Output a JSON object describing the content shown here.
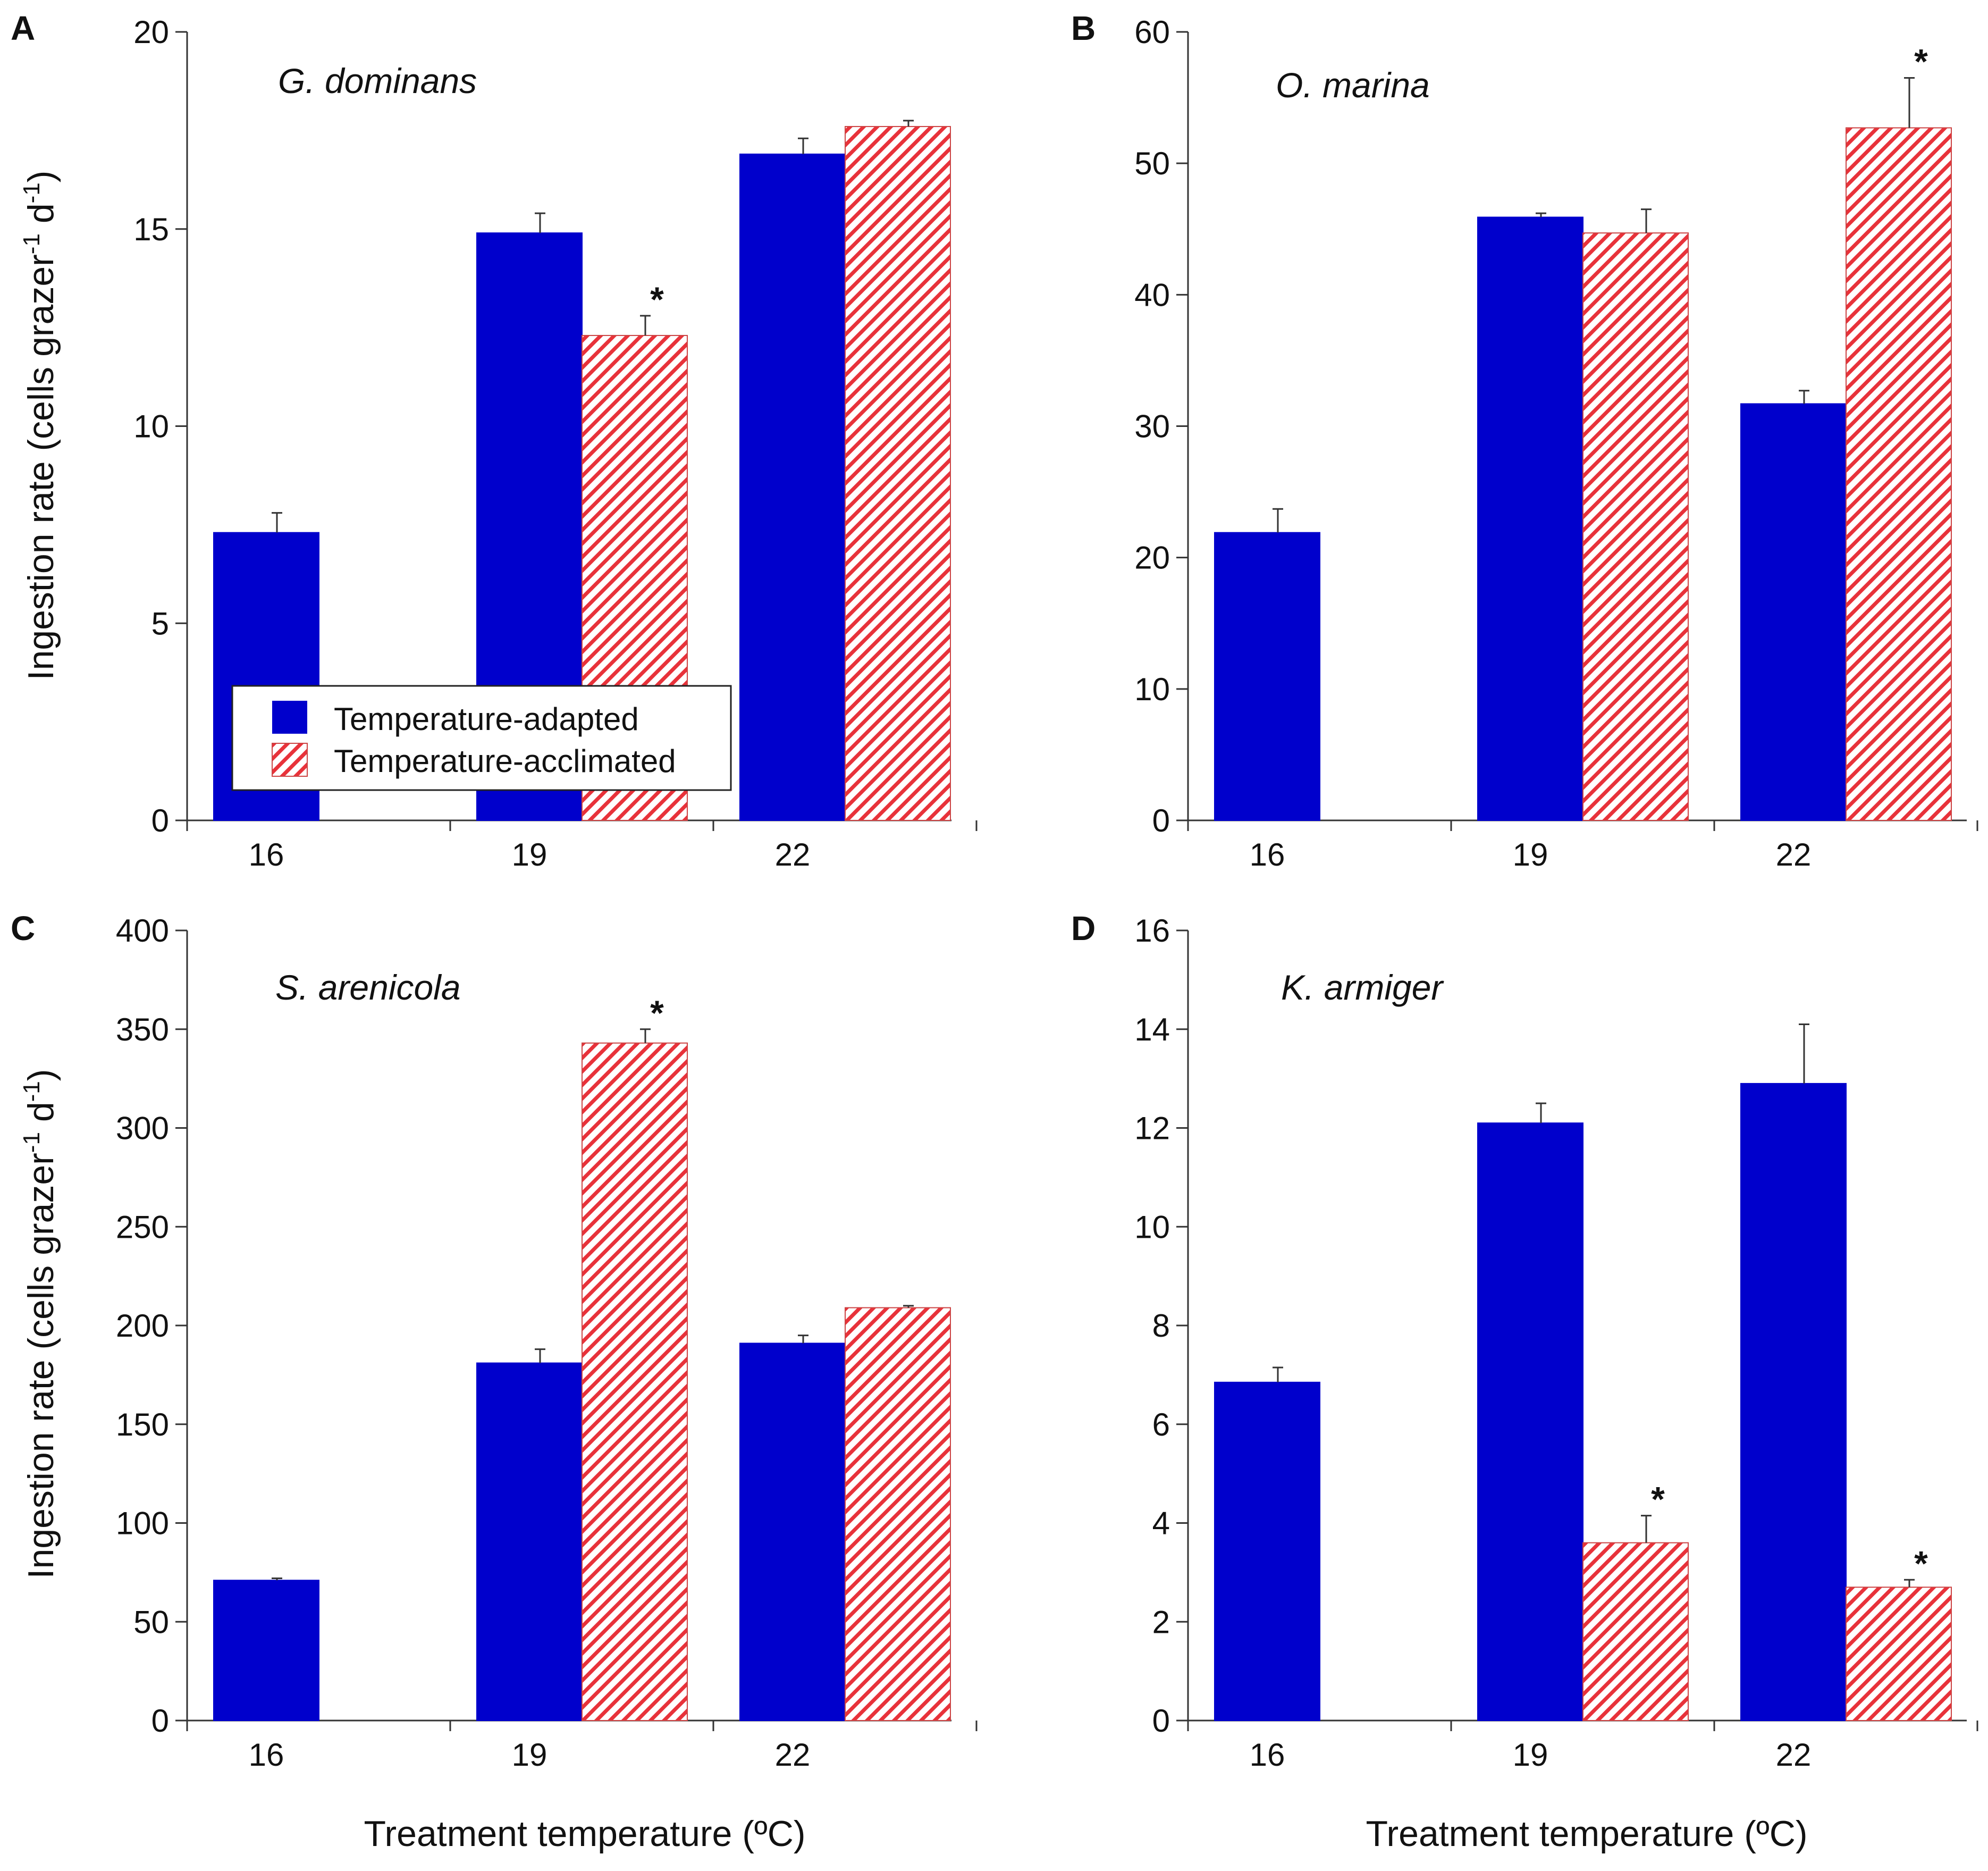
{
  "figure": {
    "colors": {
      "adapted": "#0000cc",
      "acclimated_stripe": "#e8323a",
      "acclimated_bg": "#ffffff",
      "axis": "#333333"
    },
    "xlabel": "Treatment temperature (ºC)",
    "ylabel": {
      "main": "Ingestion rate (cells grazer",
      "sup1": "-1",
      "mid": " d",
      "sup2": "-1",
      "end": ")"
    },
    "legend": {
      "adapted": "Temperature-adapted",
      "acclimated": "Temperature-acclimated"
    },
    "significance_marker": "*"
  },
  "chart_data": [
    {
      "type": "bar",
      "panel": "A",
      "title": "G. dominans",
      "categories": [
        "16",
        "19",
        "22"
      ],
      "ylim": [
        0,
        20
      ],
      "yticks": [
        0,
        5,
        10,
        15,
        20
      ],
      "series": [
        {
          "name": "Temperature-adapted",
          "values": [
            7.3,
            14.9,
            16.9
          ],
          "errors": [
            0.5,
            0.5,
            0.4
          ]
        },
        {
          "name": "Temperature-acclimated",
          "values": [
            null,
            12.3,
            17.6
          ],
          "errors": [
            null,
            0.5,
            0.15
          ]
        }
      ],
      "significant": [
        [
          false,
          false,
          false
        ],
        [
          false,
          true,
          false
        ]
      ],
      "has_legend": true
    },
    {
      "type": "bar",
      "panel": "B",
      "title": "O. marina",
      "categories": [
        "16",
        "19",
        "22"
      ],
      "ylim": [
        0,
        60
      ],
      "yticks": [
        0,
        10,
        20,
        30,
        40,
        50,
        60
      ],
      "series": [
        {
          "name": "Temperature-adapted",
          "values": [
            21.9,
            45.9,
            31.7
          ],
          "errors": [
            1.8,
            0.3,
            1.0
          ]
        },
        {
          "name": "Temperature-acclimated",
          "values": [
            null,
            44.7,
            52.7
          ],
          "errors": [
            null,
            1.8,
            3.8
          ]
        }
      ],
      "significant": [
        [
          false,
          false,
          false
        ],
        [
          false,
          false,
          true
        ]
      ],
      "has_legend": false
    },
    {
      "type": "bar",
      "panel": "C",
      "title": "S. arenicola",
      "categories": [
        "16",
        "19",
        "22"
      ],
      "ylim": [
        0,
        400
      ],
      "yticks": [
        0,
        50,
        100,
        150,
        200,
        250,
        300,
        350,
        400
      ],
      "series": [
        {
          "name": "Temperature-adapted",
          "values": [
            71,
            181,
            191
          ],
          "errors": [
            1,
            7,
            4
          ]
        },
        {
          "name": "Temperature-acclimated",
          "values": [
            null,
            343,
            209
          ],
          "errors": [
            null,
            7,
            1
          ]
        }
      ],
      "significant": [
        [
          false,
          false,
          false
        ],
        [
          false,
          true,
          false
        ]
      ],
      "has_legend": false
    },
    {
      "type": "bar",
      "panel": "D",
      "title": "K. armiger",
      "categories": [
        "16",
        "19",
        "22"
      ],
      "ylim": [
        0,
        16
      ],
      "yticks": [
        0,
        2,
        4,
        6,
        8,
        10,
        12,
        14,
        16
      ],
      "series": [
        {
          "name": "Temperature-adapted",
          "values": [
            6.85,
            12.1,
            12.9
          ],
          "errors": [
            0.3,
            0.4,
            1.2
          ]
        },
        {
          "name": "Temperature-acclimated",
          "values": [
            null,
            3.6,
            2.7
          ],
          "errors": [
            null,
            0.55,
            0.15
          ]
        }
      ],
      "significant": [
        [
          false,
          false,
          false
        ],
        [
          false,
          true,
          true
        ]
      ],
      "has_legend": false
    }
  ]
}
